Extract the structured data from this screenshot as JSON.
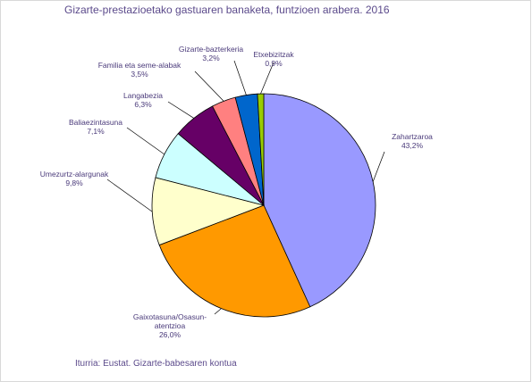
{
  "chart_data": {
    "type": "pie",
    "title": "Gizarte-prestazioetako gastuaren banaketa, funtzioen arabera. 2016",
    "source": "Iturria: Eustat. Gizarte-babesaren kontua",
    "slices": [
      {
        "label": "Zahartzaroa",
        "value_label": "43,2%",
        "value": 43.2,
        "color": "#9999ff"
      },
      {
        "label": "Gaixotasuna/Osasun-atentzioa",
        "label_lines": [
          "Gaixotasuna/Osasun-",
          "atentzioa"
        ],
        "value_label": "26,0%",
        "value": 26.0,
        "color": "#ff9900"
      },
      {
        "label": "Umezurtz-alargunak",
        "value_label": "9,8%",
        "value": 9.8,
        "color": "#ffffcc"
      },
      {
        "label": "Baliaezintasuna",
        "value_label": "7,1%",
        "value": 7.1,
        "color": "#ccffff"
      },
      {
        "label": "Langabezia",
        "value_label": "6,3%",
        "value": 6.3,
        "color": "#660066"
      },
      {
        "label": "Familia eta seme-alabak",
        "value_label": "3,5%",
        "value": 3.5,
        "color": "#ff8080"
      },
      {
        "label": "Gizarte-bazterkeria",
        "value_label": "3,2%",
        "value": 3.2,
        "color": "#0066cc"
      },
      {
        "label": "Etxebizitzak",
        "value_label": "0,9%",
        "value": 0.9,
        "color": "#99cc00"
      }
    ],
    "start_angle": "12 o'clock",
    "direction": "clockwise",
    "legend": "none"
  }
}
